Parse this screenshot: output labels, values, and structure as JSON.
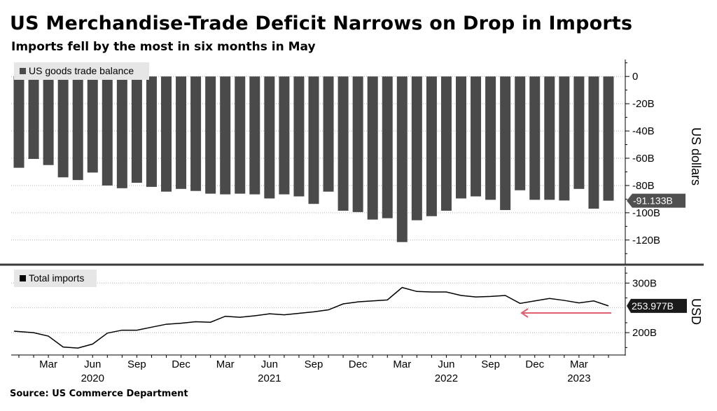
{
  "title": "US Merchandise-Trade Deficit Narrows on Drop in Imports",
  "subtitle": "Imports fell by the most in six months in May",
  "source": "Source: US Commerce Department",
  "colors": {
    "bar": "#4a4a4a",
    "line": "#000000",
    "callout_bg": "#1a1a1a",
    "arrow": "#e06070",
    "grid": "#b0b0b0",
    "divider": "#3a3a3a"
  },
  "chart_data": [
    {
      "type": "bar",
      "legend": "US goods trade balance",
      "ylabel": "US dollars",
      "ylim": [
        -135,
        15
      ],
      "yticks": [
        0,
        -20,
        -40,
        -60,
        -80,
        -100,
        -120
      ],
      "ytick_labels": [
        "0",
        "-20B",
        "-40B",
        "-60B",
        "-80B",
        "-100B",
        "-120B"
      ],
      "x": [
        "2020-01",
        "2020-02",
        "2020-03",
        "2020-04",
        "2020-05",
        "2020-06",
        "2020-07",
        "2020-08",
        "2020-09",
        "2020-10",
        "2020-11",
        "2020-12",
        "2021-01",
        "2021-02",
        "2021-03",
        "2021-04",
        "2021-05",
        "2021-06",
        "2021-07",
        "2021-08",
        "2021-09",
        "2021-10",
        "2021-11",
        "2021-12",
        "2022-01",
        "2022-02",
        "2022-03",
        "2022-04",
        "2022-05",
        "2022-06",
        "2022-07",
        "2022-08",
        "2022-09",
        "2022-10",
        "2022-11",
        "2022-12",
        "2023-01",
        "2023-02",
        "2023-03",
        "2023-04",
        "2023-05"
      ],
      "values": [
        -67,
        -60.5,
        -65,
        -74,
        -76,
        -70.5,
        -80,
        -82,
        -78,
        -81,
        -84.5,
        -82.5,
        -84,
        -86,
        -86.5,
        -86,
        -86.5,
        -89.5,
        -86.5,
        -88,
        -93.5,
        -84.5,
        -98.5,
        -99.5,
        -105,
        -104,
        -121.5,
        -105.5,
        -102.5,
        -98.5,
        -89.5,
        -88,
        -90.5,
        -98,
        -83.5,
        -90.5,
        -90.5,
        -91,
        -82.5,
        -97,
        -91.133
      ],
      "last_value_label": "-91.133B"
    },
    {
      "type": "line",
      "legend": "Total imports",
      "ylabel": "USD",
      "ylim": [
        155,
        330
      ],
      "yticks": [
        300,
        200
      ],
      "ytick_labels": [
        "300B",
        "200B"
      ],
      "x": [
        "2020-01",
        "2020-02",
        "2020-03",
        "2020-04",
        "2020-05",
        "2020-06",
        "2020-07",
        "2020-08",
        "2020-09",
        "2020-10",
        "2020-11",
        "2020-12",
        "2021-01",
        "2021-02",
        "2021-03",
        "2021-04",
        "2021-05",
        "2021-06",
        "2021-07",
        "2021-08",
        "2021-09",
        "2021-10",
        "2021-11",
        "2021-12",
        "2022-01",
        "2022-02",
        "2022-03",
        "2022-04",
        "2022-05",
        "2022-06",
        "2022-07",
        "2022-08",
        "2022-09",
        "2022-10",
        "2022-11",
        "2022-12",
        "2023-01",
        "2023-02",
        "2023-03",
        "2023-04",
        "2023-05"
      ],
      "values": [
        203,
        200,
        193,
        171,
        169,
        177,
        199,
        205,
        205,
        211,
        217,
        219,
        222,
        221,
        233,
        231,
        234,
        238,
        236,
        239,
        242,
        246,
        258,
        262,
        264,
        266,
        291,
        283,
        282,
        282,
        275,
        272,
        273,
        275,
        259,
        264,
        269,
        265,
        260,
        264,
        253.977
      ],
      "last_value_label": "253.977B"
    }
  ],
  "x_axis": {
    "month_labels": [
      {
        "x": "2020-03",
        "label": "Mar"
      },
      {
        "x": "2020-06",
        "label": "Jun"
      },
      {
        "x": "2020-09",
        "label": "Sep"
      },
      {
        "x": "2020-12",
        "label": "Dec"
      },
      {
        "x": "2021-03",
        "label": "Mar"
      },
      {
        "x": "2021-06",
        "label": "Jun"
      },
      {
        "x": "2021-09",
        "label": "Sep"
      },
      {
        "x": "2021-12",
        "label": "Dec"
      },
      {
        "x": "2022-03",
        "label": "Mar"
      },
      {
        "x": "2022-06",
        "label": "Jun"
      },
      {
        "x": "2022-09",
        "label": "Sep"
      },
      {
        "x": "2022-12",
        "label": "Dec"
      },
      {
        "x": "2023-03",
        "label": "Mar"
      }
    ],
    "year_labels": [
      {
        "x": "2020-06",
        "label": "2020"
      },
      {
        "x": "2021-06",
        "label": "2021"
      },
      {
        "x": "2022-06",
        "label": "2022"
      },
      {
        "x": "2023-03",
        "label": "2023"
      }
    ]
  }
}
